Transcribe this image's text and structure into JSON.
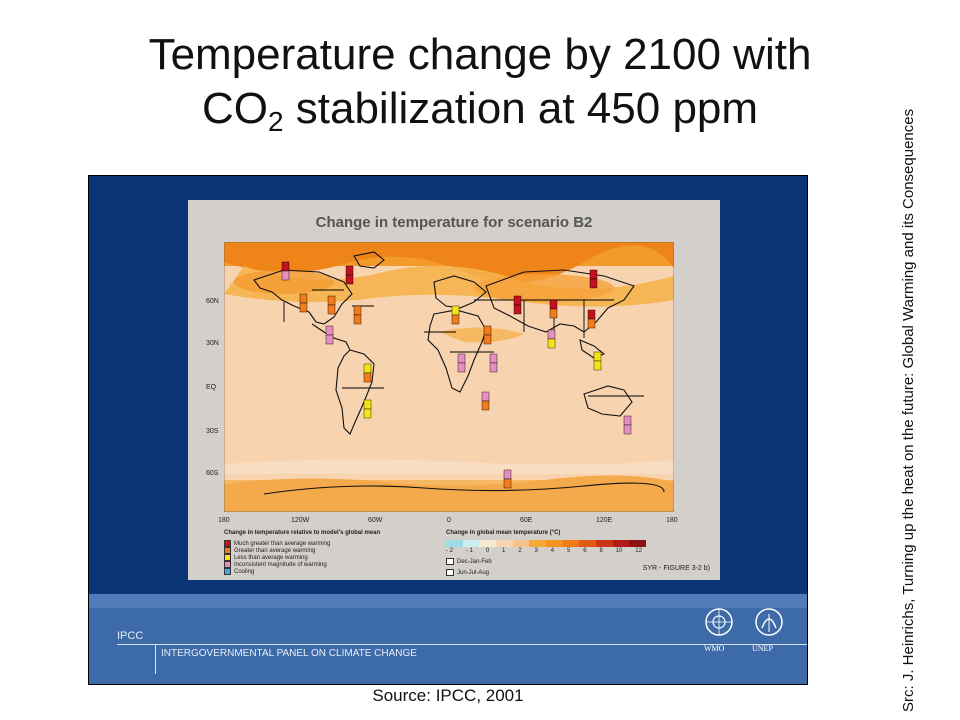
{
  "slide": {
    "title_line1": "Temperature change by 2100 with",
    "title_co": "CO",
    "title_sub": "2",
    "title_rest": " stabilization at 450 ppm",
    "side_credit": "Src: J. Heinrichs, Turning up the heat on the future: Global Warming and its Consequences",
    "source": "Source:  IPCC, 2001"
  },
  "figure": {
    "title": "Change in temperature for scenario B2",
    "lat_labels": [
      "60N",
      "30N",
      "EQ",
      "30S",
      "60S"
    ],
    "lon_labels": [
      "180",
      "120W",
      "60W",
      "0",
      "60E",
      "120E",
      "180"
    ],
    "legend_left_title": "Change in temperature relative to model's global mean",
    "legend_left_items": [
      {
        "label": "Much greater than average warming",
        "color": "#c1121f"
      },
      {
        "label": "Greater than average warming",
        "color": "#f07c1c"
      },
      {
        "label": "Less than average warming",
        "color": "#f5e31a"
      },
      {
        "label": "Inconsistent magnitude of warming",
        "color": "#e58fbf"
      },
      {
        "label": "Cooling",
        "color": "#47a7e0"
      }
    ],
    "legend_right_title": "Change in global mean temperature (°C)",
    "colorbar_ticks": [
      "- 2",
      "- 1",
      "0",
      "1",
      "2",
      "3",
      "4",
      "5",
      "6",
      "8",
      "10",
      "12"
    ],
    "colorbar_colors": [
      "#9fdbe7",
      "#cdeef0",
      "#f4ecd2",
      "#f8d5b1",
      "#f7c38c",
      "#f6a93a",
      "#f59320",
      "#f07a18",
      "#e45a14",
      "#cf3315",
      "#b01b17",
      "#8f1114"
    ],
    "season_labels": [
      "Dec-Jan-Feb",
      "Jun-Jul-Aug"
    ],
    "figure_number": "SYR - FIGURE 3-2 b)"
  },
  "footer": {
    "short_name": "IPCC",
    "long_name": "INTERGOVERNMENTAL PANEL ON CLIMATE CHANGE",
    "wmo": "WMO",
    "unep": "UNEP"
  }
}
